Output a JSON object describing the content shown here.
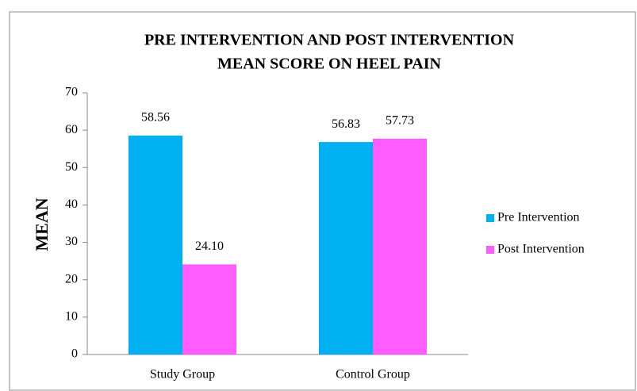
{
  "chart_data": {
    "type": "bar",
    "title": [
      "PRE INTERVENTION AND POST INTERVENTION",
      "MEAN SCORE ON HEEL PAIN"
    ],
    "y_label": "MEAN",
    "categories": [
      "Study Group",
      "Control Group"
    ],
    "series": [
      {
        "name": "Pre Intervention",
        "color": "#00b0f0",
        "values": [
          58.56,
          56.83
        ],
        "value_labels": [
          "58.56",
          "56.83"
        ]
      },
      {
        "name": "Post Intervention",
        "color": "#ff5cff",
        "values": [
          24.1,
          57.73
        ],
        "value_labels": [
          "24.10",
          "57.73"
        ]
      }
    ],
    "ylim": [
      0,
      70
    ],
    "yticks": [
      0,
      10,
      20,
      30,
      40,
      50,
      60,
      70
    ],
    "legend": "right"
  }
}
